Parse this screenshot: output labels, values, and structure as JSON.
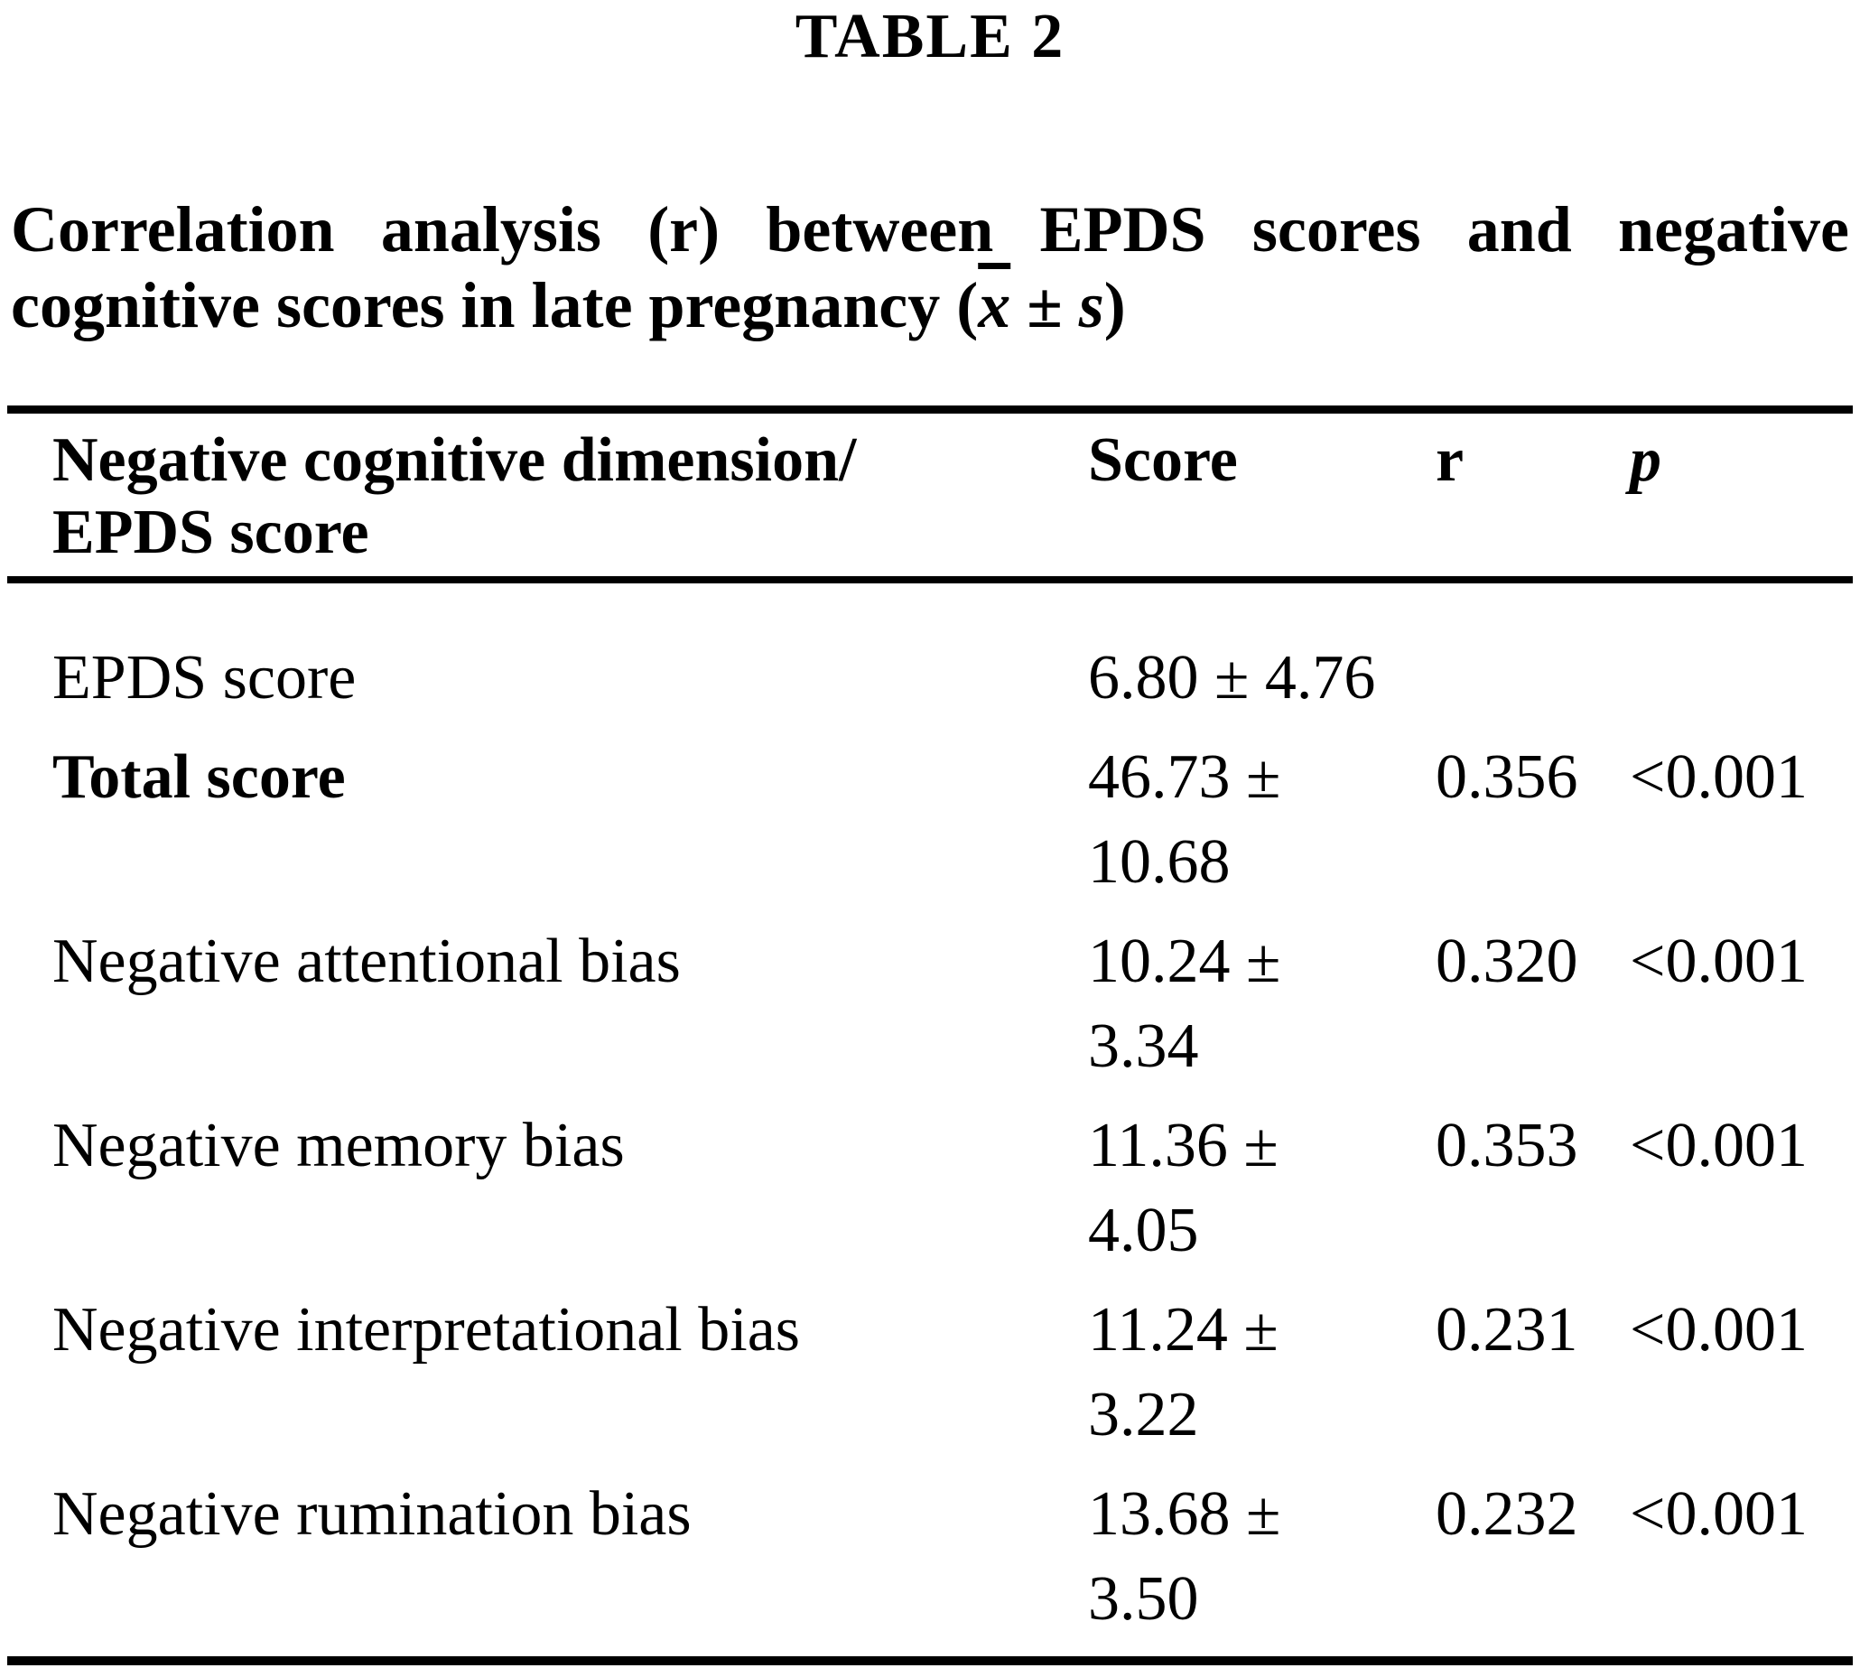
{
  "colors": {
    "background": "#ffffff",
    "text": "#000000"
  },
  "title": "TABLE 2",
  "caption": {
    "line1": "Correlation analysis (r) between EPDS scores and negative",
    "line2_prefix": "cognitive scores in late pregnancy (",
    "xbar": "x",
    "plus_minus": " ± ",
    "s": "s",
    "line2_suffix": ")"
  },
  "table": {
    "header": {
      "col1_lines": [
        "Negative cognitive dimension/",
        "EPDS score"
      ],
      "col2": "Score",
      "col3": "r",
      "col4": "p"
    },
    "rows": [
      {
        "label": "EPDS score",
        "bold": false,
        "score_lines": [
          "6.80 ± 4.76"
        ],
        "r": "",
        "p": ""
      },
      {
        "label": "Total score",
        "bold": true,
        "score_lines": [
          "46.73 ±",
          "10.68"
        ],
        "r": "0.356",
        "p": "<0.001"
      },
      {
        "label": "Negative attentional bias",
        "bold": false,
        "score_lines": [
          "10.24 ±",
          "3.34"
        ],
        "r": "0.320",
        "p": "<0.001"
      },
      {
        "label": "Negative memory bias",
        "bold": false,
        "score_lines": [
          "11.36 ±",
          "4.05"
        ],
        "r": "0.353",
        "p": "<0.001"
      },
      {
        "label": "Negative interpretational bias",
        "bold": false,
        "score_lines": [
          "11.24 ±",
          "3.22"
        ],
        "r": "0.231",
        "p": "<0.001"
      },
      {
        "label": "Negative rumination bias",
        "bold": false,
        "score_lines": [
          "13.68 ±",
          "3.50"
        ],
        "r": "0.232",
        "p": "<0.001"
      }
    ]
  }
}
